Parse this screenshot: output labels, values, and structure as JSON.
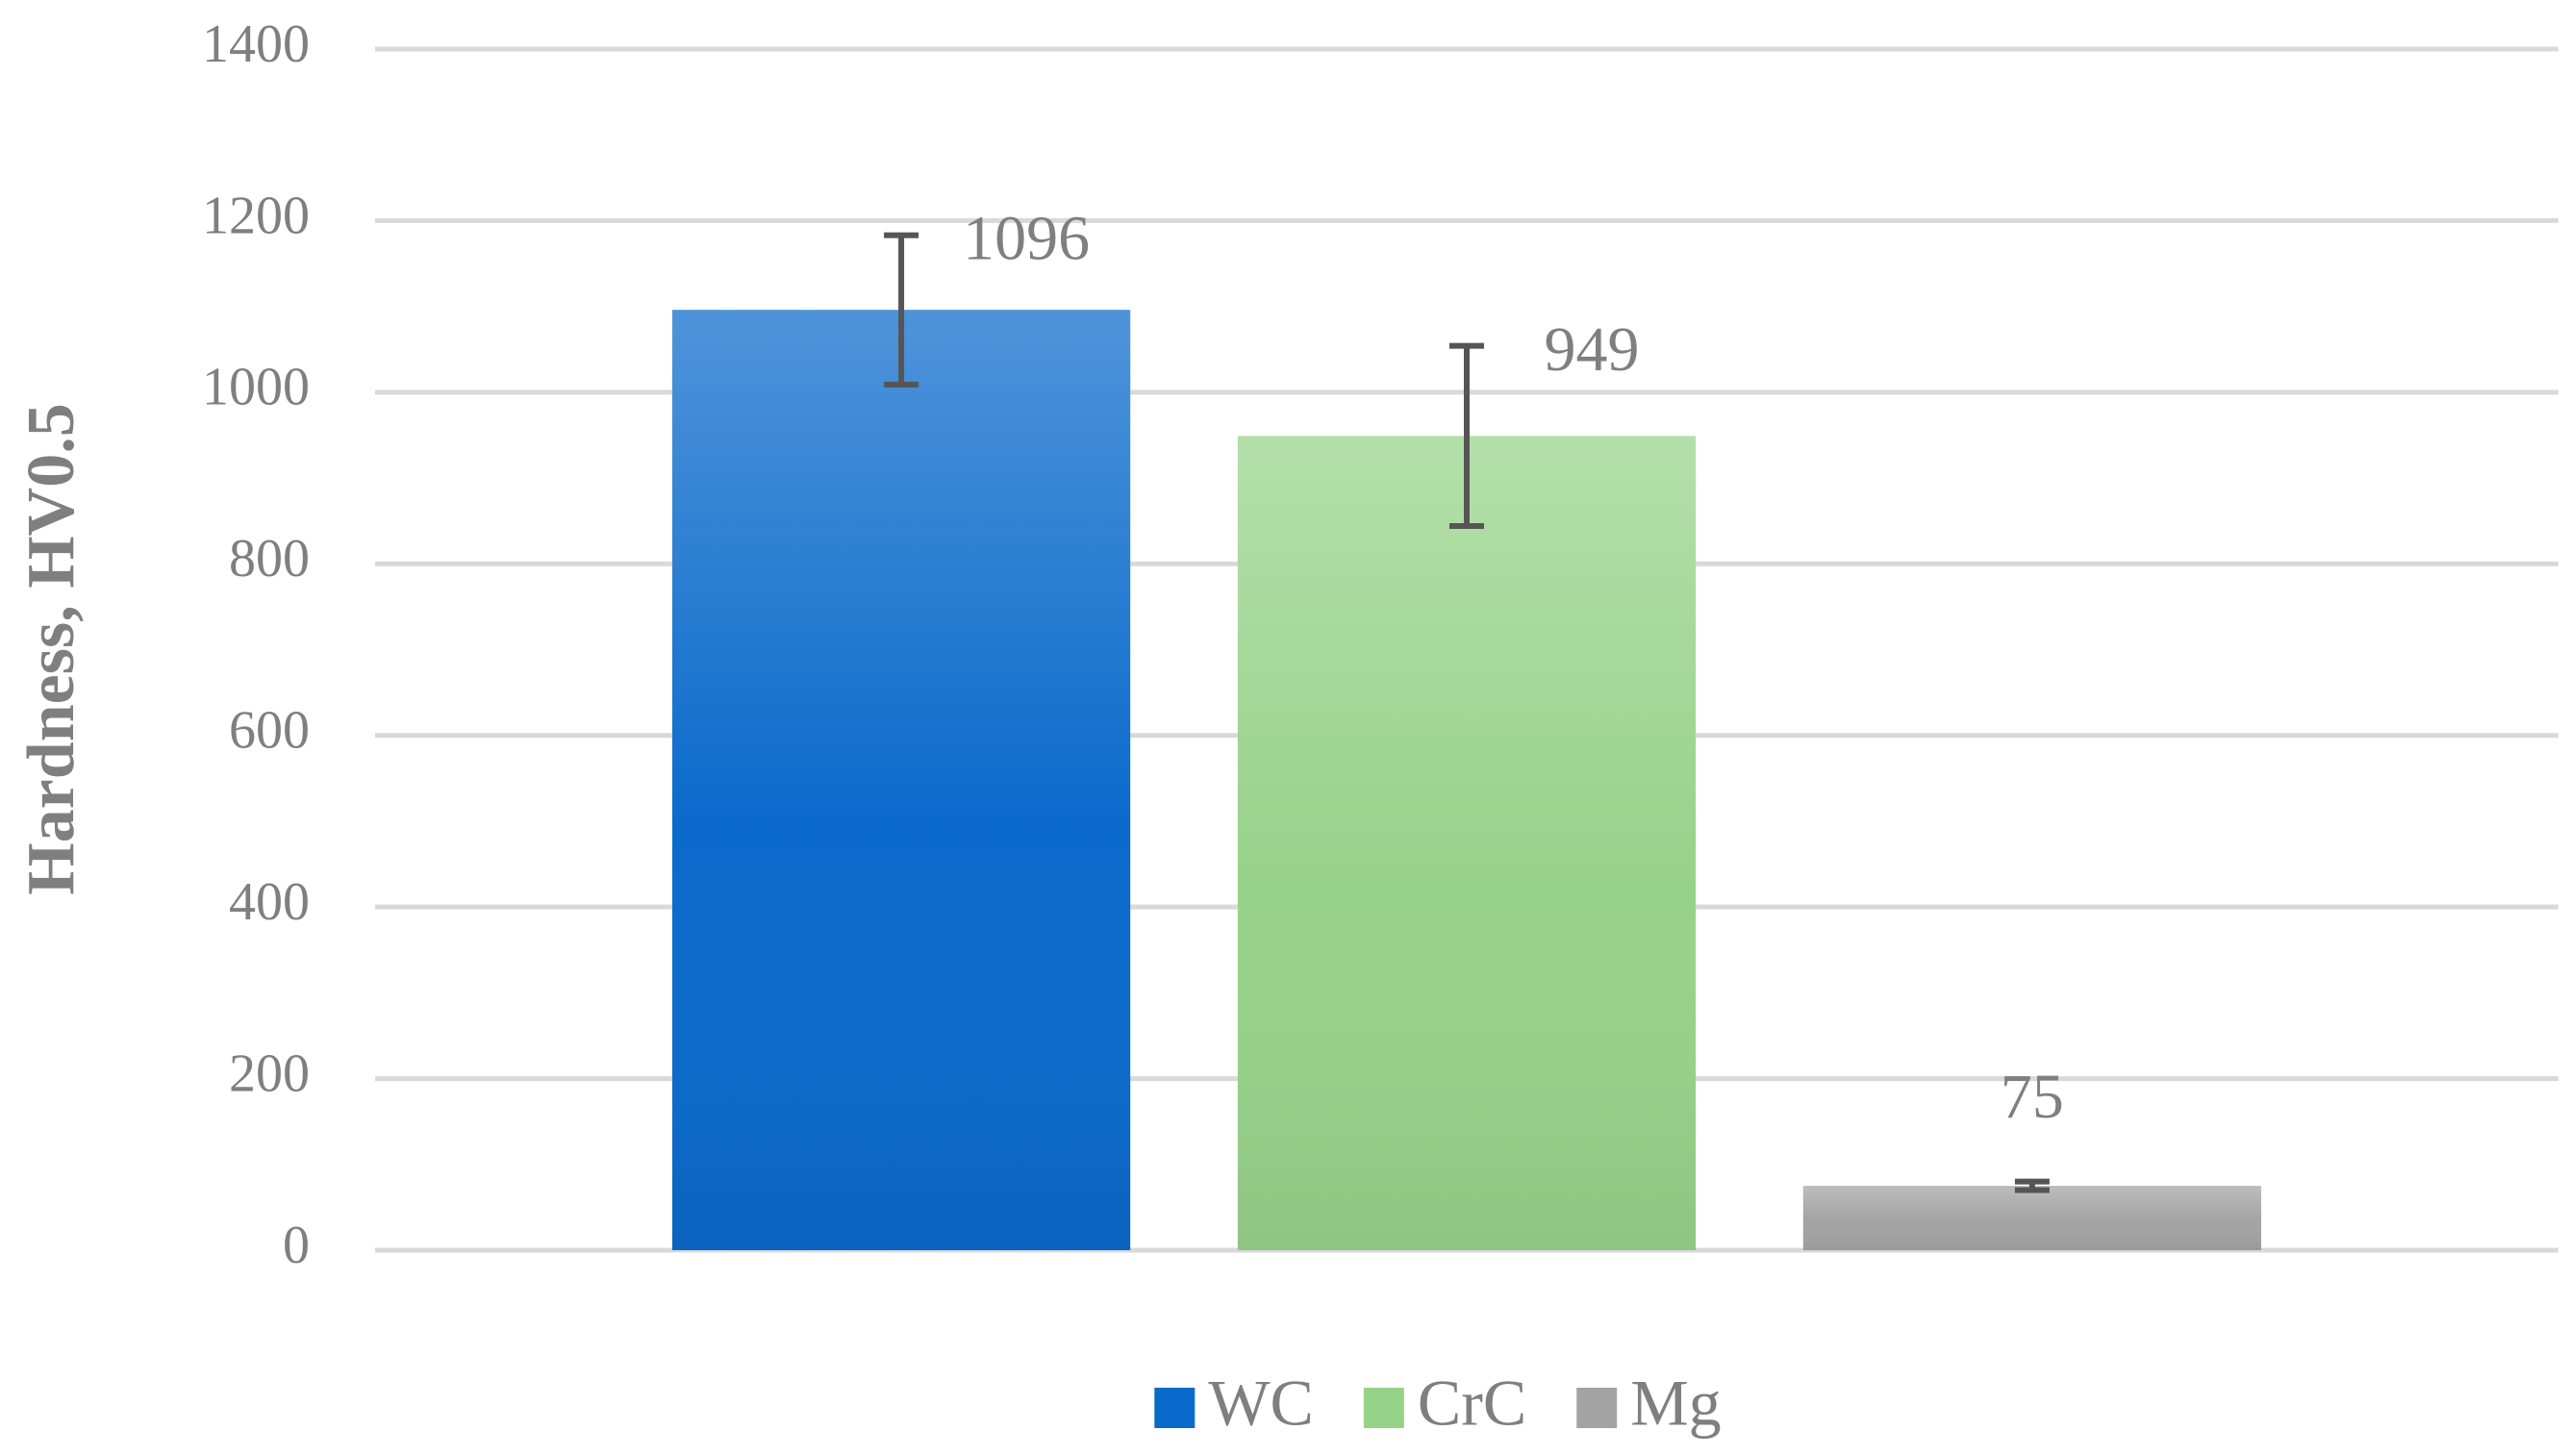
{
  "chart_data": {
    "type": "bar",
    "y_label": "Hardness, HV0.5",
    "categories": [
      null
    ],
    "series": [
      {
        "name": "WC",
        "color": "#0a6acb",
        "values": [
          1096
        ],
        "errors": [
          87
        ]
      },
      {
        "name": "CrC",
        "color": "#97d289",
        "values": [
          949
        ],
        "errors": [
          105
        ]
      },
      {
        "name": "Mg",
        "color": "#a3a3a3",
        "values": [
          75
        ],
        "errors": [
          5
        ]
      }
    ],
    "ylim": [
      0,
      1400
    ],
    "yticks": [
      0,
      200,
      400,
      600,
      800,
      1000,
      1200,
      1400
    ],
    "grid": true,
    "legend": "bottom"
  }
}
